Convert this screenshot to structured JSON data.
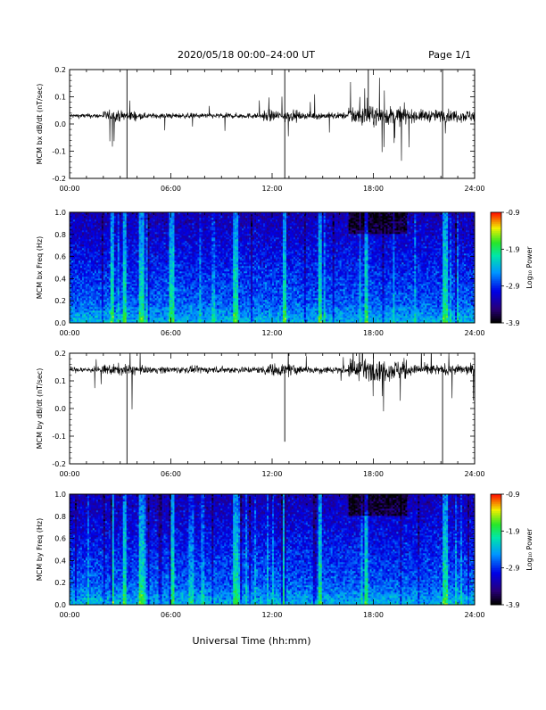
{
  "header": {
    "title": "2020/05/18  00:00–24:00 UT",
    "page": "Page 1/1"
  },
  "x_axis": {
    "title": "Universal Time (hh:mm)",
    "ticks": [
      "00:00",
      "06:00",
      "12:00",
      "18:00",
      "24:00"
    ]
  },
  "chart_data": [
    {
      "id": "bx-dbdt",
      "type": "line",
      "ylabel": "MCM bx dB/dt (nT/sec)",
      "xlim": [
        0,
        24
      ],
      "ylim": [
        -0.2,
        0.2
      ],
      "y_ticks": [
        "-0.2",
        "-0.1",
        "0.0",
        "0.1",
        "0.2"
      ],
      "baseline": 0.03,
      "spikes": [
        {
          "t": 3.4,
          "v": -0.2
        },
        {
          "t": 3.4,
          "v": 0.2
        },
        {
          "t": 12.75,
          "v": -0.2
        },
        {
          "t": 12.75,
          "v": 0.2
        },
        {
          "t": 22.1,
          "v": -0.2
        },
        {
          "t": 22.1,
          "v": 0.2
        },
        {
          "t": 17.7,
          "v": 0.2
        }
      ],
      "activity": [
        {
          "from": 0.0,
          "to": 2.0,
          "level": 0.7
        },
        {
          "from": 2.0,
          "to": 4.0,
          "level": 1.6
        },
        {
          "from": 4.0,
          "to": 11.5,
          "level": 0.8
        },
        {
          "from": 11.5,
          "to": 13.5,
          "level": 1.7
        },
        {
          "from": 13.5,
          "to": 16.5,
          "level": 1.0
        },
        {
          "from": 16.5,
          "to": 20.0,
          "level": 2.8
        },
        {
          "from": 20.0,
          "to": 24.0,
          "level": 1.8
        }
      ]
    },
    {
      "id": "bx-freq",
      "type": "heatmap",
      "ylabel": "MCM bx Freq (Hz)",
      "xlim": [
        0,
        24
      ],
      "ylim": [
        0.0,
        1.0
      ],
      "y_ticks": [
        "0.0",
        "0.2",
        "0.4",
        "0.6",
        "0.8",
        "1.0"
      ],
      "colorbar": {
        "label": "Log₁₀ Power",
        "min": -3.9,
        "max": -0.9,
        "ticks": [
          "-0.9",
          "-1.9",
          "-2.9",
          "-3.9"
        ]
      },
      "bright_columns": [
        2.5,
        3.2,
        4.2,
        6.0,
        9.8,
        12.7,
        14.8,
        17.5,
        22.2
      ]
    },
    {
      "id": "by-dbdt",
      "type": "line",
      "ylabel": "MCM by dB/dt (nT/sec)",
      "xlim": [
        0,
        24
      ],
      "ylim": [
        -0.2,
        0.2
      ],
      "y_ticks": [
        "-0.2",
        "-0.1",
        "0.0",
        "0.1",
        "0.2"
      ],
      "baseline": 0.14,
      "spikes": [
        {
          "t": 3.4,
          "v": -0.2
        },
        {
          "t": 12.75,
          "v": -0.12
        },
        {
          "t": 22.1,
          "v": -0.2
        }
      ],
      "activity": [
        {
          "from": 0.0,
          "to": 2.0,
          "level": 0.9
        },
        {
          "from": 2.0,
          "to": 4.0,
          "level": 1.6
        },
        {
          "from": 4.0,
          "to": 11.5,
          "level": 1.0
        },
        {
          "from": 11.5,
          "to": 13.5,
          "level": 1.8
        },
        {
          "from": 13.5,
          "to": 16.5,
          "level": 1.1
        },
        {
          "from": 16.5,
          "to": 20.0,
          "level": 3.0
        },
        {
          "from": 20.0,
          "to": 24.0,
          "level": 1.5
        }
      ]
    },
    {
      "id": "by-freq",
      "type": "heatmap",
      "ylabel": "MCM by Freq (Hz)",
      "xlim": [
        0,
        24
      ],
      "ylim": [
        0.0,
        1.0
      ],
      "y_ticks": [
        "0.0",
        "0.2",
        "0.4",
        "0.6",
        "0.8",
        "1.0"
      ],
      "colorbar": {
        "label": "Log₁₀ Power",
        "min": -3.9,
        "max": -0.9,
        "ticks": [
          "-0.9",
          "-1.9",
          "-2.9",
          "-3.9"
        ]
      },
      "bright_columns": [
        2.5,
        3.2,
        4.2,
        6.0,
        9.8,
        12.7,
        14.8,
        17.5,
        22.2
      ]
    }
  ]
}
